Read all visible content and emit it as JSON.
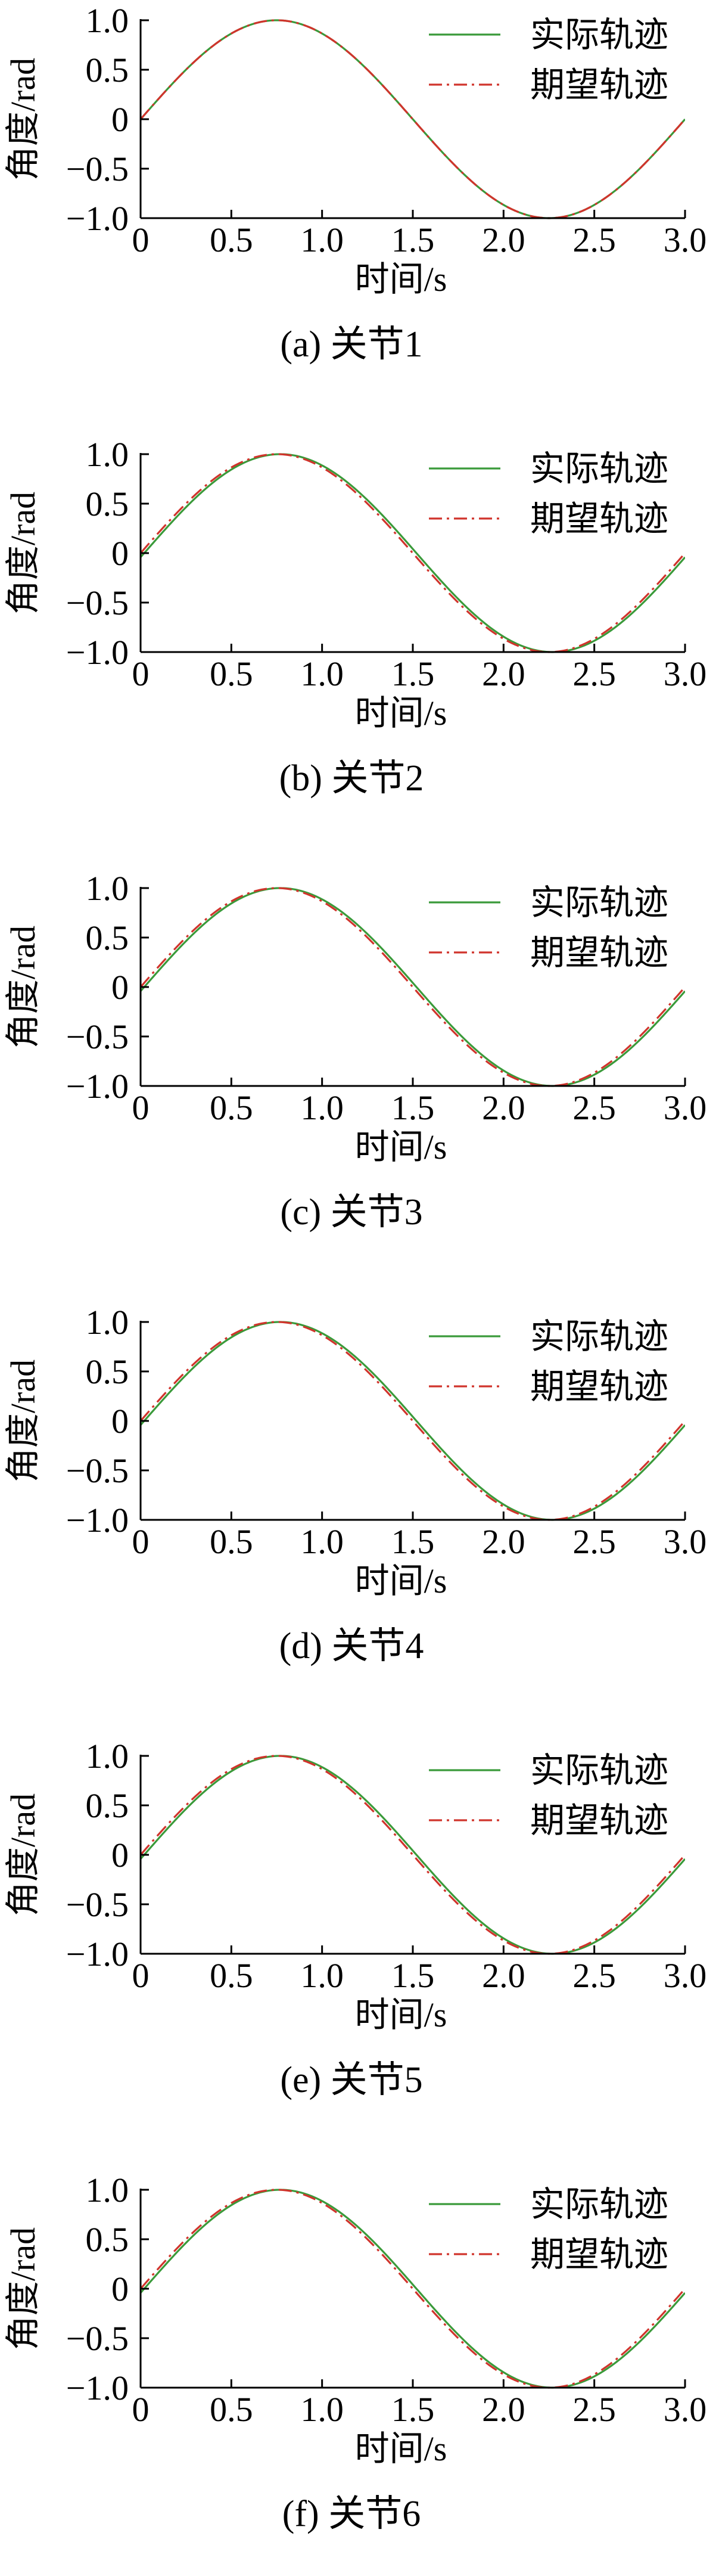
{
  "chart_data": [
    {
      "type": "line",
      "caption": "(a)  关节1",
      "xlabel": "时间/s",
      "ylabel": "角度/rad",
      "xlim": [
        0,
        3.0
      ],
      "ylim": [
        -1.0,
        1.0
      ],
      "xticks": [
        "0",
        "0.5",
        "1.0",
        "1.5",
        "2.0",
        "2.5",
        "3.0"
      ],
      "yticks": [
        "1.0",
        "0.5",
        "0",
        "−0.5",
        "−1.0"
      ],
      "grid": false,
      "legend": "top-right",
      "series": [
        {
          "name": "实际轨迹",
          "color": "#3a9a3a",
          "style": "solid",
          "amplitude": 1.0,
          "period": 3.0,
          "phase_shift": 0.0
        },
        {
          "name": "期望轨迹",
          "color": "#d0342c",
          "style": "dashdot",
          "amplitude": 1.0,
          "period": 3.0,
          "phase_shift": 0.0
        }
      ]
    },
    {
      "type": "line",
      "caption": "(b)  关节2",
      "xlabel": "时间/s",
      "ylabel": "角度/rad",
      "xlim": [
        0,
        3.0
      ],
      "ylim": [
        -1.0,
        1.0
      ],
      "xticks": [
        "0",
        "0.5",
        "1.0",
        "1.5",
        "2.0",
        "2.5",
        "3.0"
      ],
      "yticks": [
        "1.0",
        "0.5",
        "0",
        "−0.5",
        "−1.0"
      ],
      "grid": false,
      "legend": "top-right",
      "series": [
        {
          "name": "实际轨迹",
          "color": "#3a9a3a",
          "style": "solid",
          "amplitude": 1.0,
          "period": 3.0,
          "phase_shift": 0.02
        },
        {
          "name": "期望轨迹",
          "color": "#d0342c",
          "style": "dashdot",
          "amplitude": 1.0,
          "period": 3.0,
          "phase_shift": 0.0
        }
      ]
    },
    {
      "type": "line",
      "caption": "(c)  关节3",
      "xlabel": "时间/s",
      "ylabel": "角度/rad",
      "xlim": [
        0,
        3.0
      ],
      "ylim": [
        -1.0,
        1.0
      ],
      "xticks": [
        "0",
        "0.5",
        "1.0",
        "1.5",
        "2.0",
        "2.5",
        "3.0"
      ],
      "yticks": [
        "1.0",
        "0.5",
        "0",
        "−0.5",
        "−1.0"
      ],
      "grid": false,
      "legend": "top-right",
      "series": [
        {
          "name": "实际轨迹",
          "color": "#3a9a3a",
          "style": "solid",
          "amplitude": 1.0,
          "period": 3.0,
          "phase_shift": 0.02
        },
        {
          "name": "期望轨迹",
          "color": "#d0342c",
          "style": "dashdot",
          "amplitude": 1.0,
          "period": 3.0,
          "phase_shift": 0.0
        }
      ]
    },
    {
      "type": "line",
      "caption": "(d)  关节4",
      "xlabel": "时间/s",
      "ylabel": "角度/rad",
      "xlim": [
        0,
        3.0
      ],
      "ylim": [
        -1.0,
        1.0
      ],
      "xticks": [
        "0",
        "0.5",
        "1.0",
        "1.5",
        "2.0",
        "2.5",
        "3.0"
      ],
      "yticks": [
        "1.0",
        "0.5",
        "0",
        "−0.5",
        "−1.0"
      ],
      "grid": false,
      "legend": "top-right",
      "series": [
        {
          "name": "实际轨迹",
          "color": "#3a9a3a",
          "style": "solid",
          "amplitude": 1.0,
          "period": 3.0,
          "phase_shift": 0.02
        },
        {
          "name": "期望轨迹",
          "color": "#d0342c",
          "style": "dashdot",
          "amplitude": 1.0,
          "period": 3.0,
          "phase_shift": 0.0
        }
      ]
    },
    {
      "type": "line",
      "caption": "(e)  关节5",
      "xlabel": "时间/s",
      "ylabel": "角度/rad",
      "xlim": [
        0,
        3.0
      ],
      "ylim": [
        -1.0,
        1.0
      ],
      "xticks": [
        "0",
        "0.5",
        "1.0",
        "1.5",
        "2.0",
        "2.5",
        "3.0"
      ],
      "yticks": [
        "1.0",
        "0.5",
        "0",
        "−0.5",
        "−1.0"
      ],
      "grid": false,
      "legend": "top-right",
      "series": [
        {
          "name": "实际轨迹",
          "color": "#3a9a3a",
          "style": "solid",
          "amplitude": 1.0,
          "period": 3.0,
          "phase_shift": 0.02
        },
        {
          "name": "期望轨迹",
          "color": "#d0342c",
          "style": "dashdot",
          "amplitude": 1.0,
          "period": 3.0,
          "phase_shift": 0.0
        }
      ]
    },
    {
      "type": "line",
      "caption": "(f)  关节6",
      "xlabel": "时间/s",
      "ylabel": "角度/rad",
      "xlim": [
        0,
        3.0
      ],
      "ylim": [
        -1.0,
        1.0
      ],
      "xticks": [
        "0",
        "0.5",
        "1.0",
        "1.5",
        "2.0",
        "2.5",
        "3.0"
      ],
      "yticks": [
        "1.0",
        "0.5",
        "0",
        "−0.5",
        "−1.0"
      ],
      "grid": false,
      "legend": "top-right",
      "series": [
        {
          "name": "实际轨迹",
          "color": "#3a9a3a",
          "style": "solid",
          "amplitude": 1.0,
          "period": 3.0,
          "phase_shift": 0.02
        },
        {
          "name": "期望轨迹",
          "color": "#d0342c",
          "style": "dashdot",
          "amplitude": 1.0,
          "period": 3.0,
          "phase_shift": 0.0
        }
      ]
    }
  ]
}
